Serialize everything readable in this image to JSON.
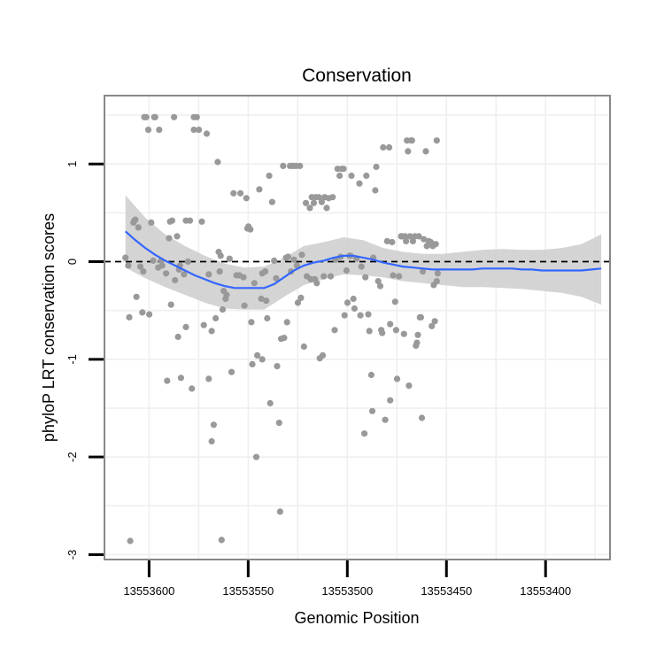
{
  "chart_data": {
    "type": "scatter",
    "title": "Conservation",
    "xlabel": "Genomic Position",
    "ylabel": "phyloP LRT conservation scores",
    "xlim": [
      13553622.5,
      13553367.5
    ],
    "ylim": [
      -3.05,
      1.7
    ],
    "x_reversed": true,
    "x_ticks": [
      13553600,
      13553550,
      13553500,
      13553450,
      13553400
    ],
    "x_tick_labels": [
      "13553600",
      "13553550",
      "13553500",
      "13553450",
      "13553400"
    ],
    "y_ticks": [
      -3,
      -2,
      -1,
      0,
      1
    ],
    "y_tick_labels": [
      "-3",
      "-2",
      "-1",
      "0",
      "1"
    ],
    "reference_line": {
      "y": 0,
      "style": "dashed"
    },
    "colors": {
      "points": "#999999",
      "smooth_line": "#3366ff",
      "ribbon": "#cccccc",
      "panel_border": "#888888",
      "grid": "#efefef"
    },
    "points": [
      [
        13553611.9,
        0.04
      ],
      [
        13553610.5,
        -0.04
      ],
      [
        13553610.0,
        -0.57
      ],
      [
        13553609.5,
        -2.86
      ],
      [
        13553607.9,
        0.4
      ],
      [
        13553607.4,
        0.42
      ],
      [
        13553606.9,
        0.43
      ],
      [
        13553606.4,
        -0.36
      ],
      [
        13553605.4,
        0.35
      ],
      [
        13553604.4,
        -0.05
      ],
      [
        13553603.4,
        -0.52
      ],
      [
        13553602.9,
        -0.1
      ],
      [
        13553602.4,
        1.48
      ],
      [
        13553601.9,
        1.48
      ],
      [
        13553601.4,
        1.48
      ],
      [
        13553600.4,
        1.35
      ],
      [
        13553599.9,
        -0.54
      ],
      [
        13553598.9,
        0.4
      ],
      [
        13553597.9,
        0.01
      ],
      [
        13553597.4,
        1.48
      ],
      [
        13553596.9,
        1.48
      ],
      [
        13553595.4,
        -0.06
      ],
      [
        13553594.9,
        1.35
      ],
      [
        13553593.9,
        0.01
      ],
      [
        13553593.4,
        -0.04
      ],
      [
        13553591.4,
        -0.12
      ],
      [
        13553590.9,
        -1.22
      ],
      [
        13553589.9,
        0.24
      ],
      [
        13553589.4,
        0.41
      ],
      [
        13553588.9,
        -0.44
      ],
      [
        13553588.4,
        0.42
      ],
      [
        13553587.4,
        1.48
      ],
      [
        13553586.9,
        -0.19
      ],
      [
        13553585.9,
        0.26
      ],
      [
        13553585.4,
        -0.77
      ],
      [
        13553584.9,
        -0.08
      ],
      [
        13553584.4,
        -0.04
      ],
      [
        13553583.9,
        -1.19
      ],
      [
        13553582.4,
        -0.13
      ],
      [
        13553581.4,
        0.42
      ],
      [
        13553581.4,
        -0.67
      ],
      [
        13553580.4,
        0.0
      ],
      [
        13553579.4,
        0.42
      ],
      [
        13553578.4,
        -1.3
      ],
      [
        13553577.4,
        1.48
      ],
      [
        13553577.4,
        1.35
      ],
      [
        13553575.9,
        1.48
      ],
      [
        13553574.9,
        1.35
      ],
      [
        13553573.4,
        0.41
      ],
      [
        13553572.4,
        -0.65
      ],
      [
        13553570.9,
        1.31
      ],
      [
        13553569.9,
        -1.2
      ],
      [
        13553569.9,
        -0.13
      ],
      [
        13553568.4,
        -0.71
      ],
      [
        13553568.4,
        -1.84
      ],
      [
        13553567.4,
        -1.67
      ],
      [
        13553566.4,
        -0.58
      ],
      [
        13553565.4,
        1.02
      ],
      [
        13553564.9,
        0.1
      ],
      [
        13553564.4,
        -0.1
      ],
      [
        13553563.9,
        0.06
      ],
      [
        13553563.4,
        -2.85
      ],
      [
        13553562.9,
        -0.49
      ],
      [
        13553562.4,
        -0.3
      ],
      [
        13553561.4,
        -0.38
      ],
      [
        13553560.9,
        -0.34
      ],
      [
        13553559.4,
        0.03
      ],
      [
        13553558.4,
        -1.13
      ],
      [
        13553557.4,
        0.7
      ],
      [
        13553555.9,
        -0.14
      ],
      [
        13553554.4,
        -0.14
      ],
      [
        13553553.9,
        0.7
      ],
      [
        13553552.4,
        -0.16
      ],
      [
        13553551.9,
        -0.45
      ],
      [
        13553550.9,
        0.65
      ],
      [
        13553550.4,
        0.34
      ],
      [
        13553549.9,
        0.36
      ],
      [
        13553548.9,
        0.33
      ],
      [
        13553548.4,
        -0.62
      ],
      [
        13553547.9,
        -1.05
      ],
      [
        13553546.9,
        -0.22
      ],
      [
        13553545.9,
        -2.0
      ],
      [
        13553545.4,
        -0.96
      ],
      [
        13553544.4,
        0.74
      ],
      [
        13553543.4,
        -0.38
      ],
      [
        13553542.9,
        -1.0
      ],
      [
        13553542.9,
        -0.12
      ],
      [
        13553541.4,
        -0.1
      ],
      [
        13553540.9,
        -0.4
      ],
      [
        13553540.4,
        -0.58
      ],
      [
        13553539.4,
        0.88
      ],
      [
        13553538.9,
        -1.45
      ],
      [
        13553537.9,
        0.61
      ],
      [
        13553536.9,
        0.01
      ],
      [
        13553535.9,
        -0.17
      ],
      [
        13553535.4,
        -1.07
      ],
      [
        13553534.4,
        -1.65
      ],
      [
        13553533.9,
        -2.56
      ],
      [
        13553533.4,
        -0.79
      ],
      [
        13553532.4,
        0.98
      ],
      [
        13553531.9,
        -0.78
      ],
      [
        13553530.9,
        0.04
      ],
      [
        13553530.4,
        -0.62
      ],
      [
        13553529.9,
        0.05
      ],
      [
        13553528.9,
        0.98
      ],
      [
        13553528.4,
        -0.1
      ],
      [
        13553527.4,
        0.98
      ],
      [
        13553526.9,
        0.02
      ],
      [
        13553525.9,
        0.98
      ],
      [
        13553525.4,
        -0.04
      ],
      [
        13553524.9,
        -0.42
      ],
      [
        13553523.9,
        0.98
      ],
      [
        13553523.4,
        -0.37
      ],
      [
        13553522.9,
        0.07
      ],
      [
        13553521.9,
        -0.87
      ],
      [
        13553520.9,
        0.6
      ],
      [
        13553520.4,
        -0.15
      ],
      [
        13553518.9,
        0.55
      ],
      [
        13553518.4,
        -0.18
      ],
      [
        13553517.9,
        0.66
      ],
      [
        13553516.9,
        0.6
      ],
      [
        13553516.4,
        -0.18
      ],
      [
        13553515.9,
        0.66
      ],
      [
        13553515.4,
        -0.22
      ],
      [
        13553514.4,
        0.66
      ],
      [
        13553513.9,
        -0.99
      ],
      [
        13553512.9,
        0.61
      ],
      [
        13553512.4,
        -0.96
      ],
      [
        13553511.9,
        -0.15
      ],
      [
        13553511.4,
        0.66
      ],
      [
        13553510.4,
        0.55
      ],
      [
        13553509.4,
        0.65
      ],
      [
        13553508.4,
        -0.15
      ],
      [
        13553507.4,
        0.66
      ],
      [
        13553506.4,
        -0.7
      ],
      [
        13553505.9,
        0.02
      ],
      [
        13553504.9,
        0.95
      ],
      [
        13553503.9,
        0.88
      ],
      [
        13553503.4,
        0.05
      ],
      [
        13553502.9,
        0.95
      ],
      [
        13553501.9,
        0.95
      ],
      [
        13553501.4,
        -0.55
      ],
      [
        13553500.4,
        -0.09
      ],
      [
        13553499.9,
        -0.42
      ],
      [
        13553498.9,
        0.06
      ],
      [
        13553498.4,
        0.06
      ],
      [
        13553497.9,
        0.88
      ],
      [
        13553496.9,
        -0.38
      ],
      [
        13553496.4,
        -0.48
      ],
      [
        13553495.4,
        0.03
      ],
      [
        13553493.9,
        0.8
      ],
      [
        13553493.4,
        -0.55
      ],
      [
        13553492.9,
        -0.05
      ],
      [
        13553491.4,
        -1.76
      ],
      [
        13553490.9,
        -0.16
      ],
      [
        13553490.4,
        0.88
      ],
      [
        13553489.4,
        -0.54
      ],
      [
        13553488.9,
        -0.71
      ],
      [
        13553487.9,
        -1.16
      ],
      [
        13553487.4,
        -1.53
      ],
      [
        13553486.9,
        0.04
      ],
      [
        13553485.9,
        0.73
      ],
      [
        13553485.4,
        0.97
      ],
      [
        13553484.4,
        -0.2
      ],
      [
        13553483.4,
        -0.25
      ],
      [
        13553482.9,
        -0.7
      ],
      [
        13553482.4,
        -0.73
      ],
      [
        13553481.9,
        1.17
      ],
      [
        13553480.9,
        -1.62
      ],
      [
        13553479.9,
        0.21
      ],
      [
        13553478.9,
        1.17
      ],
      [
        13553478.4,
        -0.64
      ],
      [
        13553478.4,
        -1.42
      ],
      [
        13553477.4,
        0.2
      ],
      [
        13553476.9,
        -0.14
      ],
      [
        13553475.9,
        -0.41
      ],
      [
        13553475.4,
        -0.7
      ],
      [
        13553474.9,
        -1.2
      ],
      [
        13553473.9,
        -0.15
      ],
      [
        13553472.9,
        0.26
      ],
      [
        13553472.4,
        0.26
      ],
      [
        13553471.4,
        -0.74
      ],
      [
        13553470.9,
        0.26
      ],
      [
        13553470.4,
        0.21
      ],
      [
        13553469.9,
        1.24
      ],
      [
        13553469.4,
        1.13
      ],
      [
        13553468.9,
        -1.27
      ],
      [
        13553468.4,
        0.26
      ],
      [
        13553467.9,
        1.24
      ],
      [
        13553467.4,
        1.24
      ],
      [
        13553466.9,
        0.21
      ],
      [
        13553465.9,
        0.26
      ],
      [
        13553465.4,
        -0.86
      ],
      [
        13553464.9,
        -0.83
      ],
      [
        13553464.4,
        -0.75
      ],
      [
        13553463.9,
        0.26
      ],
      [
        13553463.4,
        -0.57
      ],
      [
        13553462.9,
        -0.57
      ],
      [
        13553462.4,
        -1.6
      ],
      [
        13553461.9,
        -0.1
      ],
      [
        13553461.4,
        0.23
      ],
      [
        13553460.4,
        1.13
      ],
      [
        13553459.9,
        0.16
      ],
      [
        13553458.9,
        0.21
      ],
      [
        13553457.9,
        0.2
      ],
      [
        13553457.4,
        -0.66
      ],
      [
        13553456.9,
        0.16
      ],
      [
        13553456.4,
        -0.24
      ],
      [
        13553455.9,
        -0.61
      ],
      [
        13553455.4,
        0.18
      ],
      [
        13553454.9,
        -0.2
      ],
      [
        13553454.9,
        1.24
      ],
      [
        13553454.4,
        -0.12
      ]
    ],
    "smooth_line": [
      [
        13553611.9,
        0.31
      ],
      [
        13553606.9,
        0.22
      ],
      [
        13553601.9,
        0.14
      ],
      [
        13553596.9,
        0.07
      ],
      [
        13553591.9,
        0.01
      ],
      [
        13553586.9,
        -0.04
      ],
      [
        13553581.9,
        -0.09
      ],
      [
        13553576.9,
        -0.14
      ],
      [
        13553571.9,
        -0.18
      ],
      [
        13553566.9,
        -0.22
      ],
      [
        13553561.9,
        -0.25
      ],
      [
        13553556.9,
        -0.27
      ],
      [
        13553551.9,
        -0.27
      ],
      [
        13553546.9,
        -0.27
      ],
      [
        13553541.9,
        -0.27
      ],
      [
        13553536.9,
        -0.23
      ],
      [
        13553531.9,
        -0.16
      ],
      [
        13553526.9,
        -0.09
      ],
      [
        13553521.9,
        -0.04
      ],
      [
        13553516.9,
        -0.01
      ],
      [
        13553511.9,
        0.01
      ],
      [
        13553506.9,
        0.04
      ],
      [
        13553501.9,
        0.06
      ],
      [
        13553496.9,
        0.06
      ],
      [
        13553491.9,
        0.04
      ],
      [
        13553486.9,
        0.02
      ],
      [
        13553481.9,
        -0.01
      ],
      [
        13553476.9,
        -0.03
      ],
      [
        13553471.9,
        -0.05
      ],
      [
        13553466.9,
        -0.06
      ],
      [
        13553461.9,
        -0.07
      ],
      [
        13553456.9,
        -0.08
      ],
      [
        13553451.9,
        -0.08
      ],
      [
        13553446.9,
        -0.08
      ],
      [
        13553441.9,
        -0.08
      ],
      [
        13553436.9,
        -0.08
      ],
      [
        13553431.9,
        -0.07
      ],
      [
        13553426.9,
        -0.07
      ],
      [
        13553421.9,
        -0.07
      ],
      [
        13553416.9,
        -0.07
      ],
      [
        13553411.9,
        -0.08
      ],
      [
        13553406.9,
        -0.08
      ],
      [
        13553401.9,
        -0.09
      ],
      [
        13553396.9,
        -0.09
      ],
      [
        13553391.9,
        -0.09
      ],
      [
        13553386.9,
        -0.09
      ],
      [
        13553381.9,
        -0.09
      ],
      [
        13553376.9,
        -0.08
      ],
      [
        13553371.9,
        -0.07
      ]
    ],
    "ribbon_upper": [
      [
        13553611.9,
        0.68
      ],
      [
        13553601.9,
        0.45
      ],
      [
        13553591.9,
        0.28
      ],
      [
        13553581.9,
        0.16
      ],
      [
        13553571.9,
        0.06
      ],
      [
        13553561.9,
        -0.02
      ],
      [
        13553551.9,
        -0.06
      ],
      [
        13553541.9,
        -0.05
      ],
      [
        13553531.9,
        0.04
      ],
      [
        13553521.9,
        0.16
      ],
      [
        13553511.9,
        0.2
      ],
      [
        13553501.9,
        0.25
      ],
      [
        13553491.9,
        0.22
      ],
      [
        13553481.9,
        0.14
      ],
      [
        13553471.9,
        0.1
      ],
      [
        13553461.9,
        0.08
      ],
      [
        13553451.9,
        0.08
      ],
      [
        13553441.9,
        0.1
      ],
      [
        13553431.9,
        0.12
      ],
      [
        13553421.9,
        0.13
      ],
      [
        13553411.9,
        0.12
      ],
      [
        13553401.9,
        0.12
      ],
      [
        13553391.9,
        0.14
      ],
      [
        13553381.9,
        0.18
      ],
      [
        13553371.9,
        0.28
      ]
    ],
    "ribbon_lower": [
      [
        13553611.9,
        -0.06
      ],
      [
        13553601.9,
        -0.17
      ],
      [
        13553591.9,
        -0.26
      ],
      [
        13553581.9,
        -0.34
      ],
      [
        13553571.9,
        -0.42
      ],
      [
        13553561.9,
        -0.48
      ],
      [
        13553551.9,
        -0.49
      ],
      [
        13553541.9,
        -0.49
      ],
      [
        13553531.9,
        -0.36
      ],
      [
        13553521.9,
        -0.24
      ],
      [
        13553511.9,
        -0.18
      ],
      [
        13553501.9,
        -0.13
      ],
      [
        13553491.9,
        -0.14
      ],
      [
        13553481.9,
        -0.16
      ],
      [
        13553471.9,
        -0.2
      ],
      [
        13553461.9,
        -0.22
      ],
      [
        13553451.9,
        -0.24
      ],
      [
        13553441.9,
        -0.26
      ],
      [
        13553431.9,
        -0.26
      ],
      [
        13553421.9,
        -0.27
      ],
      [
        13553411.9,
        -0.28
      ],
      [
        13553401.9,
        -0.3
      ],
      [
        13553391.9,
        -0.32
      ],
      [
        13553381.9,
        -0.36
      ],
      [
        13553371.9,
        -0.44
      ]
    ]
  }
}
